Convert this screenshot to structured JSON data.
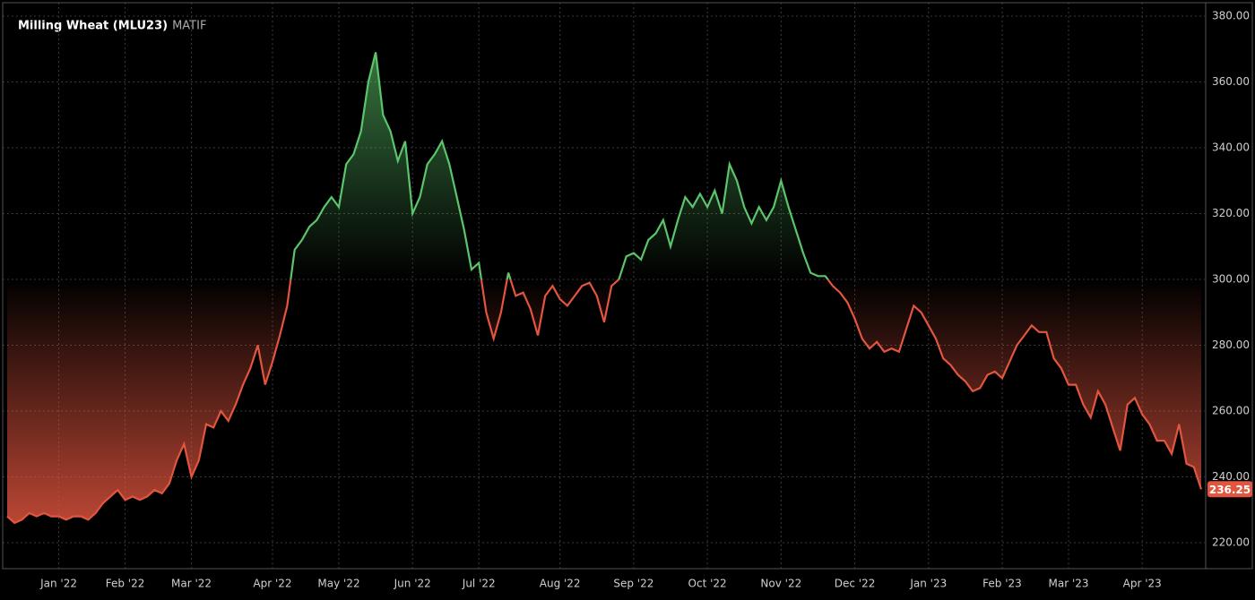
{
  "chart_data": {
    "type": "line",
    "title": "Milling Wheat (MLU23)",
    "exchange": "MATIF",
    "categories": [
      null,
      null,
      null,
      null,
      null,
      null,
      null,
      "Jan '22",
      null,
      null,
      null,
      null,
      null,
      null,
      null,
      null,
      "Feb '22",
      null,
      null,
      null,
      null,
      null,
      null,
      null,
      null,
      "Mar '22",
      null,
      null,
      null,
      null,
      null,
      null,
      null,
      null,
      null,
      null,
      "Apr '22",
      null,
      null,
      null,
      null,
      null,
      null,
      null,
      null,
      "May '22",
      null,
      null,
      null,
      null,
      null,
      null,
      null,
      null,
      null,
      "Jun '22",
      null,
      null,
      null,
      null,
      null,
      null,
      null,
      null,
      "Jul '22",
      null,
      null,
      null,
      null,
      null,
      null,
      null,
      null,
      null,
      null,
      "Aug '22",
      null,
      null,
      null,
      null,
      null,
      null,
      null,
      null,
      null,
      "Sep '22",
      null,
      null,
      null,
      null,
      null,
      null,
      null,
      null,
      null,
      "Oct '22",
      null,
      null,
      null,
      null,
      null,
      null,
      null,
      null,
      null,
      "Nov '22",
      null,
      null,
      null,
      null,
      null,
      null,
      null,
      null,
      null,
      "Dec '22",
      null,
      null,
      null,
      null,
      null,
      null,
      null,
      null,
      null,
      "Jan '23",
      null,
      null,
      null,
      null,
      null,
      null,
      null,
      null,
      null,
      "Feb '23",
      null,
      null,
      null,
      null,
      null,
      null,
      null,
      null,
      "Mar '23",
      null,
      null,
      null,
      null,
      null,
      null,
      null,
      null,
      null,
      "Apr '23",
      null,
      null,
      null,
      null,
      null,
      null,
      null,
      null
    ],
    "series": [
      {
        "name": "Milling Wheat (MLU23)",
        "values": [
          228,
          226,
          227,
          229,
          228,
          229,
          228,
          228,
          227,
          228,
          228,
          227,
          229,
          232,
          234,
          236,
          233,
          234,
          233,
          234,
          236,
          235,
          238,
          245,
          250,
          240,
          245,
          256,
          255,
          260,
          257,
          262,
          268,
          273,
          280,
          268,
          275,
          283,
          292,
          309,
          312,
          316,
          318,
          322,
          325,
          322,
          335,
          338,
          345,
          360,
          369,
          350,
          345,
          336,
          342,
          320,
          325,
          335,
          338,
          342,
          335,
          325,
          315,
          303,
          305,
          290,
          282,
          290,
          302,
          295,
          296,
          291,
          283,
          295,
          298,
          294,
          292,
          295,
          298,
          299,
          295,
          287,
          298,
          300,
          307,
          308,
          306,
          312,
          314,
          318,
          310,
          318,
          325,
          322,
          326,
          322,
          327,
          320,
          335,
          330,
          322,
          317,
          322,
          318,
          322,
          330,
          322,
          315,
          308,
          302,
          301,
          301,
          298,
          296,
          293,
          288,
          282,
          279,
          281,
          278,
          279,
          278,
          285,
          292,
          290,
          286,
          282,
          276,
          274,
          271,
          269,
          266,
          267,
          271,
          272,
          270,
          275,
          280,
          283,
          286,
          284,
          284,
          276,
          273,
          268,
          268,
          262,
          258,
          266,
          262,
          255,
          248,
          262,
          264,
          259,
          256,
          251,
          251,
          247,
          256,
          244,
          243,
          236.25
        ]
      }
    ],
    "baseline": 300,
    "up_color": "#5cc46b",
    "down_color": "#e2553f",
    "ylim": [
      218,
      382
    ],
    "yticks": [
      {
        "value": 220,
        "label": "220.00"
      },
      {
        "value": 240,
        "label": "240.00"
      },
      {
        "value": 260,
        "label": "260.00"
      },
      {
        "value": 280,
        "label": "280.00"
      },
      {
        "value": 300,
        "label": "300.00"
      },
      {
        "value": 320,
        "label": "320.00"
      },
      {
        "value": 340,
        "label": "340.00"
      },
      {
        "value": 360,
        "label": "360.00"
      },
      {
        "value": 380,
        "label": "380.00"
      }
    ],
    "grid": true
  }
}
